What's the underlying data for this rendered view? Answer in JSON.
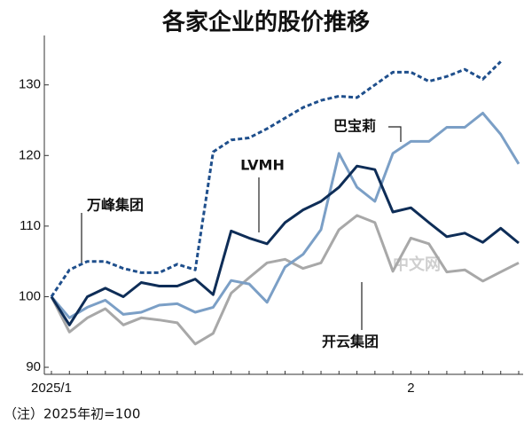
{
  "chart_data": {
    "type": "line",
    "title": "各家企业的股价推移",
    "categories": [
      "2025/1",
      null,
      null,
      null,
      null,
      null,
      null,
      null,
      null,
      null,
      null,
      null,
      null,
      null,
      null,
      null,
      null,
      null,
      null,
      null,
      "2",
      null,
      null,
      null,
      null,
      null,
      null
    ],
    "series": [
      {
        "name": "万峰集团",
        "color": "#1f4f8c",
        "dashed": true,
        "values": [
          100,
          103.8,
          105,
          105,
          104,
          103.4,
          103.4,
          104.6,
          103.8,
          120.5,
          122.2,
          122.5,
          123.8,
          125.3,
          126.8,
          127.8,
          128.4,
          128.2,
          130,
          131.8,
          131.8,
          130.5,
          131.2,
          132.2,
          130.8,
          133.3,
          null
        ]
      },
      {
        "name": "LVMH",
        "color": "#0e2d57",
        "values": [
          100,
          96,
          100,
          101.2,
          100,
          102,
          101.5,
          101.5,
          102.5,
          100.3,
          109.3,
          108.3,
          107.5,
          110.5,
          112.3,
          113.5,
          115.5,
          118.5,
          118,
          112,
          112.6,
          110.5,
          108.5,
          109,
          107.7,
          109.7,
          107.6
        ]
      },
      {
        "name": "巴宝莉",
        "color": "#7b9fc6",
        "values": [
          100,
          97,
          98.5,
          99.5,
          97.5,
          97.8,
          98.8,
          99,
          97.8,
          98.5,
          102.3,
          101.8,
          99.2,
          104.2,
          106,
          109.5,
          120.3,
          115.5,
          113.5,
          120.3,
          122,
          122,
          124,
          124,
          126,
          123,
          118.8
        ]
      },
      {
        "name": "开云集团",
        "color": "#a8a8a8",
        "values": [
          100,
          95,
          97,
          98.3,
          96,
          97,
          96.7,
          96.3,
          93.3,
          94.8,
          100.5,
          102.7,
          104.8,
          105.3,
          104,
          104.8,
          109.5,
          111.5,
          110.5,
          103.6,
          108.3,
          107.5,
          103.5,
          103.8,
          102.2,
          103.5,
          104.8
        ]
      }
    ],
    "ylim": [
      89,
      137
    ],
    "yticks": [
      90,
      100,
      110,
      120,
      130
    ],
    "note": "（注）2025年初=100",
    "watermark": "中文网"
  }
}
